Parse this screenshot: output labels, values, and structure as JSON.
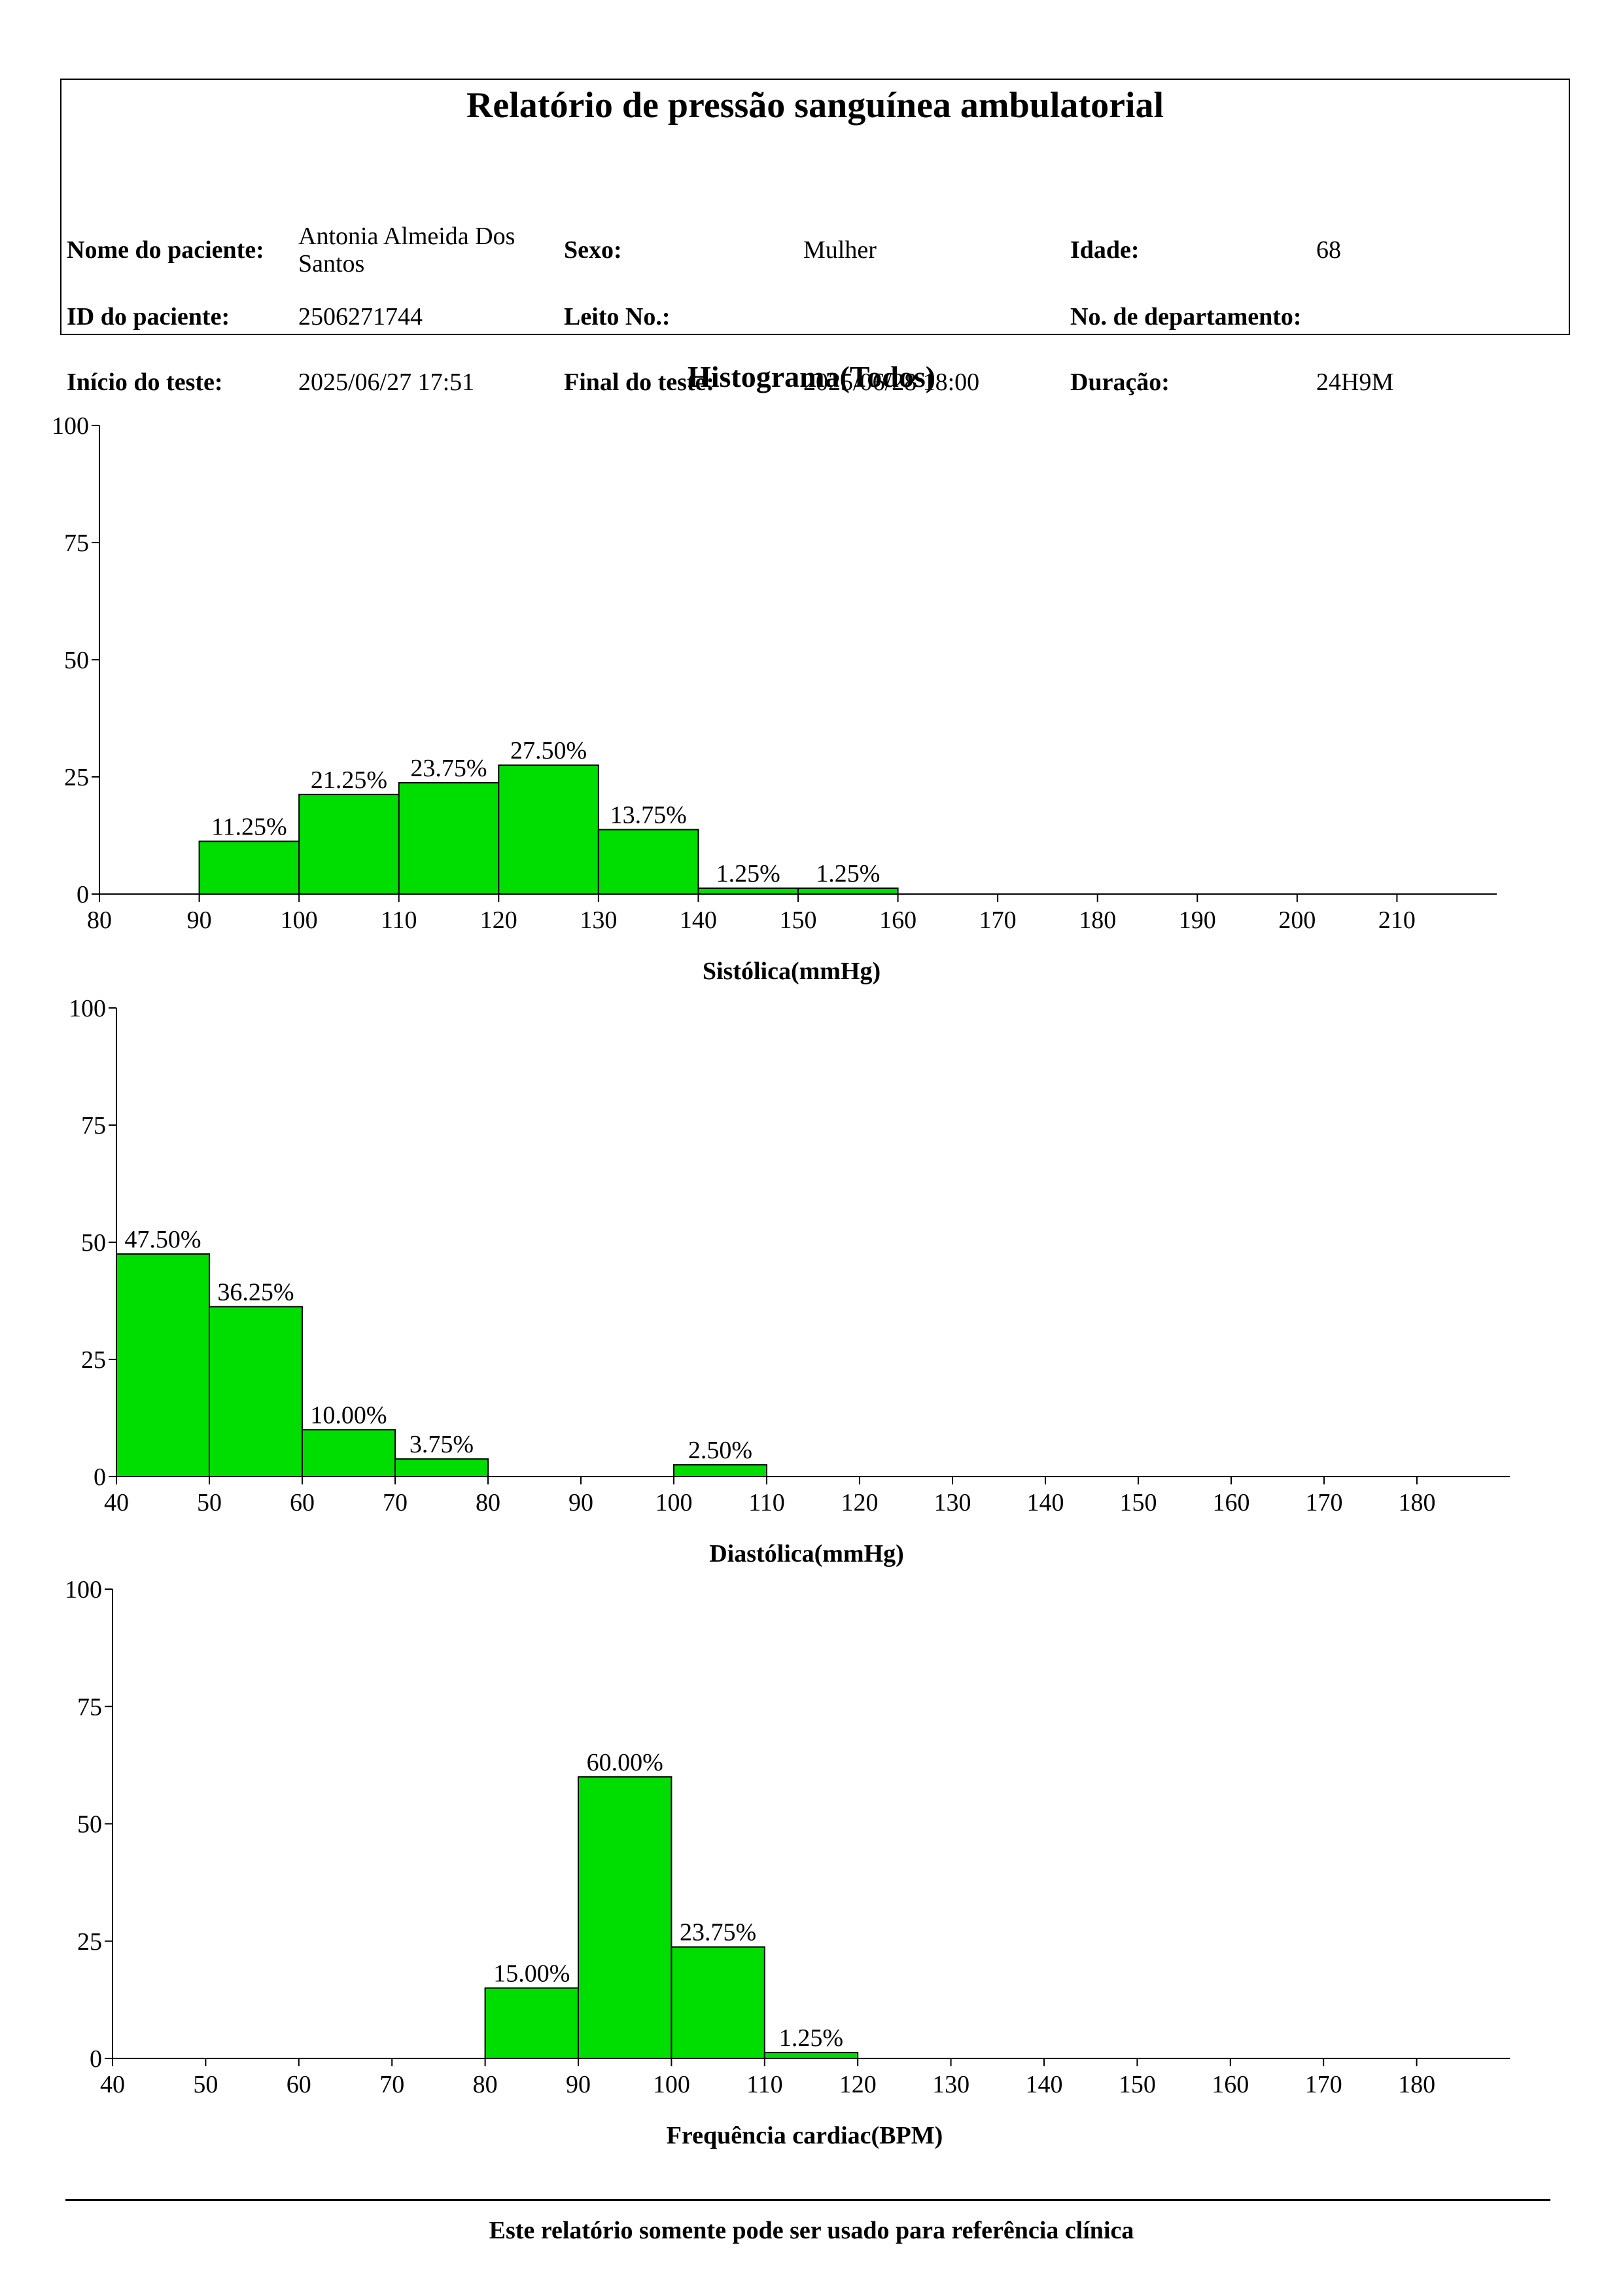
{
  "header": {
    "title": "Relatório de pressão sanguínea ambulatorial",
    "patient_name_label": "Nome do paciente:",
    "patient_name": "Antonia Almeida Dos Santos",
    "sex_label": "Sexo:",
    "sex": "Mulher",
    "age_label": "Idade:",
    "age": "68",
    "patient_id_label": "ID do paciente:",
    "patient_id": "2506271744",
    "bed_label": "Leito No.:",
    "bed": "",
    "department_label": "No. de departamento:",
    "department": "",
    "test_start_label": "Início do teste:",
    "test_start": "2025/06/27 17:51",
    "test_end_label": "Final do teste:",
    "test_end": "2025/06/28 18:00",
    "duration_label": "Duração:",
    "duration": "24H9M"
  },
  "histogram_title": "Histograma(Todos)",
  "footer": {
    "note": "Este relatório somente pode ser usado para referência clínica"
  },
  "colors": {
    "bar_fill": "#00dd00",
    "bar_stroke": "#000000"
  },
  "chart_data": [
    {
      "id": "systolic",
      "type": "bar",
      "title": "",
      "xlabel": "Sistólica(mmHg)",
      "ylabel": "",
      "xlim": [
        80,
        220
      ],
      "xticks": [
        80,
        90,
        100,
        110,
        120,
        130,
        140,
        150,
        160,
        170,
        180,
        190,
        200,
        210
      ],
      "ylim": [
        0,
        100
      ],
      "yticks": [
        0,
        25,
        50,
        75,
        100
      ],
      "grid": false,
      "bins": [
        {
          "start": 90,
          "end": 100,
          "value": 11.25,
          "label": "11.25%"
        },
        {
          "start": 100,
          "end": 110,
          "value": 21.25,
          "label": "21.25%"
        },
        {
          "start": 110,
          "end": 120,
          "value": 23.75,
          "label": "23.75%"
        },
        {
          "start": 120,
          "end": 130,
          "value": 27.5,
          "label": "27.50%"
        },
        {
          "start": 130,
          "end": 140,
          "value": 13.75,
          "label": "13.75%"
        },
        {
          "start": 140,
          "end": 150,
          "value": 1.25,
          "label": "1.25%"
        },
        {
          "start": 150,
          "end": 160,
          "value": 1.25,
          "label": "1.25%"
        }
      ]
    },
    {
      "id": "diastolic",
      "type": "bar",
      "title": "",
      "xlabel": "Diastólica(mmHg)",
      "ylabel": "",
      "xlim": [
        40,
        190
      ],
      "xticks": [
        40,
        50,
        60,
        70,
        80,
        90,
        100,
        110,
        120,
        130,
        140,
        150,
        160,
        170,
        180
      ],
      "ylim": [
        0,
        100
      ],
      "yticks": [
        0,
        25,
        50,
        75,
        100
      ],
      "grid": false,
      "bins": [
        {
          "start": 40,
          "end": 50,
          "value": 47.5,
          "label": "47.50%"
        },
        {
          "start": 50,
          "end": 60,
          "value": 36.25,
          "label": "36.25%"
        },
        {
          "start": 60,
          "end": 70,
          "value": 10.0,
          "label": "10.00%"
        },
        {
          "start": 70,
          "end": 80,
          "value": 3.75,
          "label": "3.75%"
        },
        {
          "start": 100,
          "end": 110,
          "value": 2.5,
          "label": "2.50%"
        }
      ]
    },
    {
      "id": "heart-rate",
      "type": "bar",
      "title": "",
      "xlabel": "Frequência cardiac(BPM)",
      "ylabel": "",
      "xlim": [
        40,
        190
      ],
      "xticks": [
        40,
        50,
        60,
        70,
        80,
        90,
        100,
        110,
        120,
        130,
        140,
        150,
        160,
        170,
        180
      ],
      "ylim": [
        0,
        100
      ],
      "yticks": [
        0,
        25,
        50,
        75,
        100
      ],
      "grid": false,
      "bins": [
        {
          "start": 80,
          "end": 90,
          "value": 15.0,
          "label": "15.00%"
        },
        {
          "start": 90,
          "end": 100,
          "value": 60.0,
          "label": "60.00%"
        },
        {
          "start": 100,
          "end": 110,
          "value": 23.75,
          "label": "23.75%"
        },
        {
          "start": 110,
          "end": 120,
          "value": 1.25,
          "label": "1.25%"
        }
      ]
    }
  ]
}
